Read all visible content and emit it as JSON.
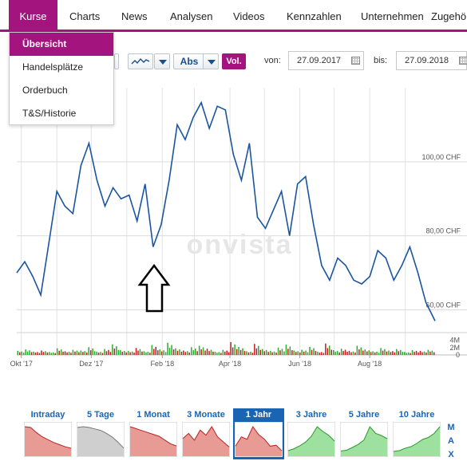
{
  "nav": {
    "items": [
      "Kurse",
      "Charts",
      "News",
      "Analysen",
      "Videos",
      "Kennzahlen",
      "Unternehmen",
      "Zugehörige"
    ],
    "active": "Kurse"
  },
  "dropdown": {
    "items": [
      "Übersicht",
      "Handelsplätze",
      "Orderbuch",
      "T&S/Historie"
    ]
  },
  "toolbar": {
    "chart_style_icon": "line-chart-icon",
    "scale_label": "Abs",
    "volume_label": "Vol.",
    "from_label": "von:",
    "from_date": "27.09.2017",
    "to_label": "bis:",
    "to_date": "27.09.2018"
  },
  "watermark": "onvista",
  "colors": {
    "accent": "#a3147f",
    "line": "#1a55a0",
    "vol_up": "#2eaa2e",
    "vol_down": "#c01b1b",
    "tab_active": "#1a64b4"
  },
  "chart_data": {
    "type": "line",
    "currency": "CHF",
    "x_tick_labels": [
      "Okt '17",
      "Dez '17",
      "Feb '18",
      "Apr '18",
      "Jun '18",
      "Aug '18"
    ],
    "y_tick_labels": [
      "100,00 CHF",
      "80,00 CHF",
      "60,00 CHF"
    ],
    "y_ticks": [
      100,
      80,
      60
    ],
    "ylim": [
      56,
      120
    ],
    "volume_tick_labels": [
      "4M",
      "2M",
      "0"
    ],
    "volume_ylim": [
      0,
      5
    ],
    "series": [
      {
        "x": [
          "2017-09-27",
          "2017-10-04",
          "2017-10-11",
          "2017-10-18",
          "2017-10-25",
          "2017-11-01",
          "2017-11-08",
          "2017-11-15",
          "2017-11-22",
          "2017-11-29",
          "2017-12-06",
          "2017-12-13",
          "2017-12-20",
          "2017-12-27",
          "2018-01-03",
          "2018-01-10",
          "2018-01-17",
          "2018-01-24",
          "2018-01-31",
          "2018-02-07",
          "2018-02-14",
          "2018-02-21",
          "2018-02-28",
          "2018-03-07",
          "2018-03-14",
          "2018-03-21",
          "2018-03-28",
          "2018-04-04",
          "2018-04-11",
          "2018-04-18",
          "2018-04-25",
          "2018-05-02",
          "2018-05-09",
          "2018-05-16",
          "2018-05-23",
          "2018-05-30",
          "2018-06-06",
          "2018-06-13",
          "2018-06-20",
          "2018-06-27",
          "2018-07-04",
          "2018-07-11",
          "2018-07-18",
          "2018-07-25",
          "2018-08-01",
          "2018-08-08",
          "2018-08-15",
          "2018-08-22",
          "2018-08-29",
          "2018-09-05",
          "2018-09-12",
          "2018-09-19",
          "2018-09-27"
        ],
        "values": [
          70,
          73,
          69,
          64,
          78,
          92,
          88,
          86,
          99,
          105,
          95,
          88,
          93,
          90,
          91,
          84,
          94,
          77,
          83,
          95,
          110,
          106,
          112,
          116,
          109,
          115,
          114,
          102,
          95,
          105,
          85,
          82,
          87,
          92,
          80,
          94,
          96,
          83,
          72,
          68,
          74,
          72,
          68,
          67,
          69,
          76,
          74,
          68,
          72,
          77,
          70,
          62,
          57
        ]
      }
    ],
    "volume_values": [
      0.8,
      1.2,
      0.6,
      0.9,
      0.5,
      1.5,
      0.7,
      1.1,
      0.9,
      1.8,
      0.6,
      1.3,
      2.6,
      1.0,
      0.8,
      1.6,
      0.7,
      2.4,
      1.2,
      3.0,
      1.5,
      0.9,
      1.8,
      2.2,
      1.4,
      0.6,
      1.1,
      3.2,
      1.9,
      0.7,
      2.7,
      1.3,
      0.8,
      1.7,
      2.5,
      0.9,
      1.1,
      1.9,
      0.6,
      2.8,
      1.0,
      1.4,
      0.8,
      2.2,
      1.2,
      0.7,
      1.6,
      0.9,
      1.3,
      0.5,
      1.0,
      0.8,
      1.1
    ]
  },
  "timeframes": [
    {
      "label": "Intraday",
      "color": "red",
      "values": [
        100,
        99,
        92,
        86,
        82,
        78,
        75,
        72,
        70
      ]
    },
    {
      "label": "5 Tage",
      "color": "grey",
      "values": [
        100,
        101,
        100,
        98,
        96,
        92,
        87,
        80,
        72
      ]
    },
    {
      "label": "1 Monat",
      "color": "red",
      "values": [
        80,
        78,
        76,
        74,
        72,
        70,
        66,
        62,
        60
      ]
    },
    {
      "label": "3 Monate",
      "color": "red",
      "values": [
        60,
        66,
        58,
        70,
        64,
        74,
        62,
        56,
        50
      ]
    },
    {
      "label": "1 Jahr",
      "color": "red",
      "active": true,
      "values": [
        70,
        90,
        85,
        112,
        95,
        85,
        70,
        72,
        60
      ]
    },
    {
      "label": "3 Jahre",
      "color": "green",
      "values": [
        30,
        34,
        40,
        48,
        60,
        80,
        70,
        62,
        50
      ]
    },
    {
      "label": "5 Jahre",
      "color": "green",
      "values": [
        20,
        22,
        28,
        35,
        45,
        75,
        60,
        55,
        48
      ]
    },
    {
      "label": "10 Jahre",
      "color": "green",
      "values": [
        10,
        12,
        18,
        22,
        30,
        40,
        45,
        55,
        72
      ]
    }
  ],
  "max_label": "MAX"
}
